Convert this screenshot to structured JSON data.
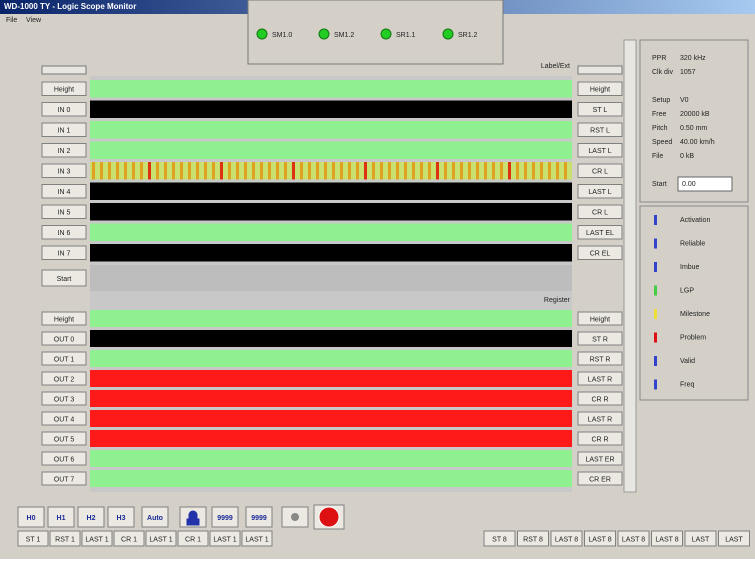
{
  "window": {
    "title": "WD-1000 TY - Logic Scope Monitor",
    "menu": [
      "File",
      "View"
    ]
  },
  "indicators": [
    "SM1.0",
    "SM1.2",
    "SR1.1",
    "SR1.2"
  ],
  "scope": {
    "top_label": "Label/Ext",
    "bottom_label": "Register",
    "top_rows": [
      {
        "left": "Height",
        "right": "Height",
        "color": "#8ef08e"
      },
      {
        "left": "IN 0",
        "right": "ST L",
        "color": "#000000"
      },
      {
        "left": "IN 1",
        "right": "RST L",
        "color": "#8ef08e"
      },
      {
        "left": "IN 2",
        "right": "LAST L",
        "color": "#8ef08e"
      },
      {
        "left": "IN 3",
        "right": "CR L",
        "color": "stripe"
      },
      {
        "left": "IN 4",
        "right": "LAST L",
        "color": "#000000"
      },
      {
        "left": "IN 5",
        "right": "CR L",
        "color": "#000000"
      },
      {
        "left": "IN 6",
        "right": "LAST EL",
        "color": "#8ef08e"
      },
      {
        "left": "IN 7",
        "right": "CR EL",
        "color": "#000000"
      }
    ],
    "separator": "Start",
    "bottom_rows": [
      {
        "left": "Height",
        "right": "Height",
        "color": "#8ef08e"
      },
      {
        "left": "OUT 0",
        "right": "ST R",
        "color": "#000000"
      },
      {
        "left": "OUT 1",
        "right": "RST R",
        "color": "#8ef08e"
      },
      {
        "left": "OUT 2",
        "right": "LAST R",
        "color": "#ff1a1a"
      },
      {
        "left": "OUT 3",
        "right": "CR R",
        "color": "#ff1a1a"
      },
      {
        "left": "OUT 4",
        "right": "LAST R",
        "color": "#ff1a1a"
      },
      {
        "left": "OUT 5",
        "right": "CR R",
        "color": "#ff1a1a"
      },
      {
        "left": "OUT 6",
        "right": "LAST ER",
        "color": "#8ef08e"
      },
      {
        "left": "OUT 7",
        "right": "CR ER",
        "color": "#8ef08e"
      }
    ]
  },
  "info": {
    "top": [
      [
        "PPR",
        "320 kHz"
      ],
      [
        "Clk div",
        "1057"
      ]
    ],
    "bottom": [
      [
        "Setup",
        "V0"
      ],
      [
        "Free",
        "20000 kB"
      ],
      [
        "Pitch",
        "0.50 mm"
      ],
      [
        "Speed",
        "40.00 km/h"
      ],
      [
        "File",
        "0 kB"
      ]
    ],
    "start": {
      "label": "Start",
      "value": "0.00"
    }
  },
  "legend": [
    {
      "name": "Activation",
      "color": "#3344cc"
    },
    {
      "name": "Reliable",
      "color": "#3344cc"
    },
    {
      "name": "Imbue",
      "color": "#3344cc"
    },
    {
      "name": "LGP",
      "color": "#44cc44"
    },
    {
      "name": "Milestone",
      "color": "#eedd33"
    },
    {
      "name": "Problem",
      "color": "#dd1111"
    },
    {
      "name": "Valid",
      "color": "#3344cc"
    },
    {
      "name": "Freq",
      "color": "#3344cc"
    }
  ],
  "toolbar": [
    "H0",
    "H1",
    "H2",
    "H3",
    "Auto",
    "9999",
    "9999"
  ],
  "status_left": [
    "ST 1",
    "RST 1",
    "LAST 1",
    "CR 1",
    "LAST 1",
    "CR 1",
    "LAST 1",
    "LAST 1"
  ],
  "status_right": [
    "ST 8",
    "RST 8",
    "LAST 8",
    "LAST 8",
    "LAST 8",
    "LAST 8",
    "LAST",
    "LAST"
  ]
}
